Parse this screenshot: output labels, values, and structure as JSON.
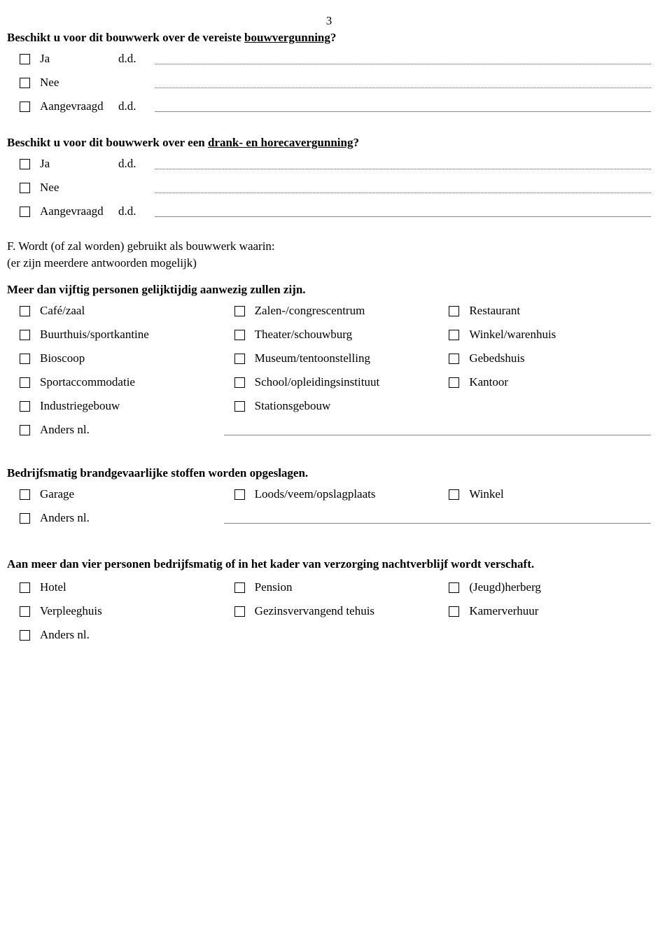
{
  "pageNumber": "3",
  "q1": {
    "prefix": "Beschikt u voor dit bouwwerk over de vereiste  ",
    "underlined": "bouwvergunning",
    "suffix": "?",
    "options": {
      "ja": "Ja",
      "nee": "Nee",
      "aangevraagd": "Aangevraagd"
    },
    "dd": "d.d."
  },
  "q2": {
    "prefix": "Beschikt u  voor dit bouwwerk over een ",
    "underlined": "drank- en horecavergunning",
    "suffix": "?",
    "options": {
      "ja": "Ja",
      "nee": "Nee",
      "aangevraagd": "Aangevraagd"
    },
    "dd": "d.d."
  },
  "sectionF": {
    "line1": "F. Wordt (of zal worden) gebruikt als bouwwerk waarin:",
    "line2": "(er zijn meerdere antwoorden mogelijk)"
  },
  "groupA": {
    "heading": "Meer dan vijftig personen gelijktijdig aanwezig zullen zijn.",
    "rows": [
      [
        "Café/zaal",
        "Zalen-/congrescentrum",
        "Restaurant"
      ],
      [
        "Buurthuis/sportkantine",
        "Theater/schouwburg",
        "Winkel/warenhuis"
      ],
      [
        "Bioscoop",
        "Museum/tentoonstelling",
        "Gebedshuis"
      ],
      [
        "Sportaccommodatie",
        "School/opleidingsinstituut",
        "Kantoor"
      ],
      [
        "Industriegebouw",
        "Stationsgebouw",
        ""
      ]
    ],
    "anders": "Anders nl."
  },
  "groupB": {
    "heading": "Bedrijfsmatig brandgevaarlijke stoffen worden opgeslagen.",
    "rows": [
      [
        "Garage",
        "Loods/veem/opslagplaats",
        "Winkel"
      ]
    ],
    "anders": "Anders nl."
  },
  "groupC": {
    "heading": "Aan meer dan vier personen bedrijfsmatig of in het kader van verzorging nachtverblijf wordt verschaft.",
    "rows": [
      [
        "Hotel",
        "Pension",
        "(Jeugd)herberg"
      ],
      [
        "Verpleeghuis",
        "Gezinsvervangend tehuis",
        "Kamerverhuur"
      ]
    ],
    "anders": "Anders nl."
  }
}
